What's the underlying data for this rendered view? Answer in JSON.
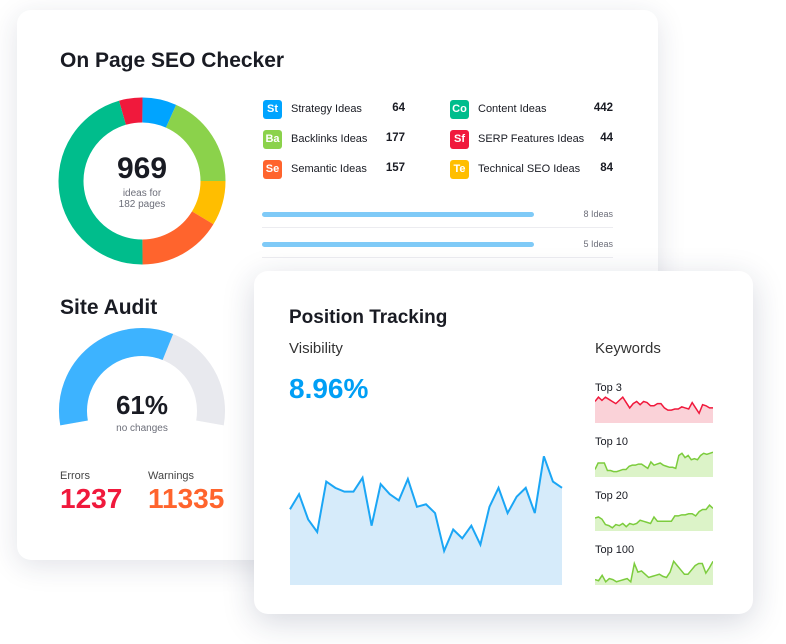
{
  "seo": {
    "title": "On Page SEO Checker",
    "total": "969",
    "sub1": "ideas for",
    "sub2": "182 pages",
    "ideas": [
      {
        "abbr": "St",
        "label": "Strategy Ideas",
        "value": 64,
        "color": "#00a4ff"
      },
      {
        "abbr": "Ba",
        "label": "Backlinks Ideas",
        "value": 177,
        "color": "#8bd24b"
      },
      {
        "abbr": "Se",
        "label": "Semantic Ideas",
        "value": 157,
        "color": "#ff642d"
      },
      {
        "abbr": "Co",
        "label": "Content Ideas",
        "value": 442,
        "color": "#00bd8c"
      },
      {
        "abbr": "Sf",
        "label": "SERP Features Ideas",
        "value": 44,
        "color": "#f0193c"
      },
      {
        "abbr": "Te",
        "label": "Technical SEO Ideas",
        "value": 84,
        "color": "#ffbe00"
      }
    ],
    "rows": [
      {
        "label": "8 Ideas",
        "fill": 1
      },
      {
        "label": "5 Ideas",
        "fill": 1
      }
    ]
  },
  "audit": {
    "title": "Site Audit",
    "percent": 61,
    "percent_label": "61%",
    "sub": "no changes",
    "errors_label": "Errors",
    "errors": "1237",
    "warnings_label": "Warnings",
    "warnings": "11335",
    "errors_color": "#f0193c",
    "warnings_color": "#ff642d",
    "gauge_color": "#3db3ff"
  },
  "tracking": {
    "title": "Position Tracking",
    "visibility_label": "Visibility",
    "visibility": "8.96%",
    "accent": "#009ff5",
    "series": [
      60,
      72,
      52,
      42,
      82,
      77,
      74,
      74,
      85,
      47,
      80,
      72,
      67,
      84,
      62,
      64,
      57,
      27,
      44,
      37,
      47,
      32,
      62,
      77,
      57,
      70,
      77,
      57,
      102,
      82,
      77
    ],
    "keywords_label": "Keywords",
    "keywords": [
      {
        "label": "Top 3",
        "color": "#f0193c",
        "fill": "#fad2d8",
        "series": [
          20,
          24,
          21,
          24,
          22,
          20,
          18,
          21,
          24,
          19,
          14,
          18,
          20,
          17,
          20,
          19,
          16,
          16,
          18,
          18,
          14,
          12,
          12,
          13,
          13,
          15,
          14,
          13,
          19,
          14,
          9,
          17,
          16,
          14,
          14
        ]
      },
      {
        "label": "Top 10",
        "color": "#7ccc3d",
        "fill": "#dcf3c8",
        "series": [
          7,
          13,
          13,
          13,
          6,
          6,
          5,
          5,
          6,
          7,
          7,
          10,
          11,
          11,
          12,
          12,
          10,
          8,
          14,
          11,
          12,
          13,
          11,
          10,
          9,
          9,
          8,
          20,
          22,
          18,
          20,
          16,
          17,
          16,
          20,
          22,
          21,
          22,
          23
        ]
      },
      {
        "label": "Top 20",
        "color": "#7ccc3d",
        "fill": "#dcf3c8",
        "series": [
          12,
          13,
          11,
          6,
          5,
          3,
          6,
          5,
          7,
          4,
          7,
          6,
          7,
          10,
          9,
          8,
          7,
          13,
          9,
          9,
          9,
          9,
          9,
          14,
          14,
          15,
          15,
          16,
          16,
          14,
          18,
          20,
          20,
          24,
          21
        ]
      },
      {
        "label": "Top 100",
        "color": "#7ccc3d",
        "fill": "#dcf3c8",
        "series": [
          5,
          4,
          9,
          3,
          6,
          5,
          3,
          4,
          5,
          6,
          3,
          20,
          12,
          13,
          10,
          7,
          8,
          9,
          10,
          8,
          7,
          12,
          22,
          18,
          14,
          10,
          10,
          14,
          18,
          20,
          20,
          11,
          16,
          22
        ]
      }
    ]
  }
}
